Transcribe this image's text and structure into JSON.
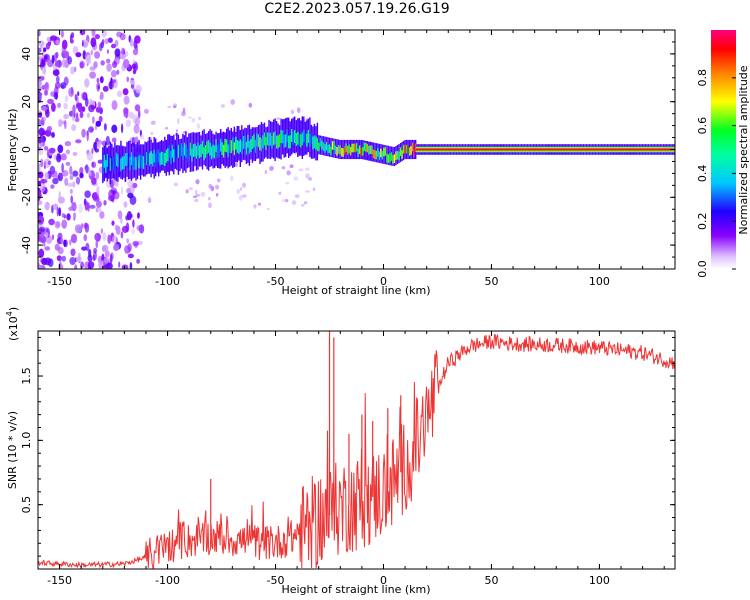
{
  "title": "C2E2.2023.057.19.26.G19",
  "chart_data": [
    {
      "type": "heatmap",
      "xlabel": "Height of straight line (km)",
      "ylabel": "Frequency (Hz)",
      "xlim": [
        -160,
        135
      ],
      "ylim": [
        -50,
        50
      ],
      "xticks": [
        -150,
        -100,
        -50,
        0,
        50,
        100
      ],
      "yticks": [
        -40,
        -20,
        0,
        20,
        40
      ],
      "colorbar": {
        "label": "Normalized spectral amplitude",
        "range": [
          0,
          1
        ],
        "ticks": [
          0.0,
          0.2,
          0.4,
          0.6,
          0.8
        ],
        "colormap": [
          "#ffffff",
          "#d8b0ff",
          "#8800ff",
          "#2000ff",
          "#00e0ff",
          "#00ff40",
          "#ffff00",
          "#ff8000",
          "#ff0000",
          "#ff0080"
        ]
      },
      "ridge": {
        "x": [
          -130,
          -110,
          -90,
          -70,
          -50,
          -40,
          -35,
          -30,
          -20,
          -10,
          0,
          5,
          10,
          20,
          50,
          100,
          135
        ],
        "y": [
          -6,
          -4,
          -1,
          1,
          4,
          5,
          5,
          2,
          0,
          0,
          -2,
          -3,
          0,
          0,
          0,
          0,
          0
        ],
        "peak_amplitude": [
          0.4,
          0.45,
          0.5,
          0.6,
          0.6,
          0.55,
          0.5,
          0.6,
          0.8,
          0.85,
          0.75,
          0.7,
          0.9,
          1.0,
          1.0,
          1.0,
          1.0
        ]
      }
    },
    {
      "type": "line",
      "xlabel": "Height of straight line (km)",
      "ylabel": "SNR (10 * v/v)",
      "scale_label": "(x10",
      "scale_exp": "4",
      "scale_suffix": ")",
      "xlim": [
        -160,
        135
      ],
      "ylim": [
        0,
        18500
      ],
      "xticks": [
        -150,
        -100,
        -50,
        0,
        50,
        100
      ],
      "yticks": [
        0.5,
        1.0,
        1.5
      ],
      "ytick_labels": [
        "0.5",
        "1.0",
        "1.5"
      ],
      "color": "#ee3333",
      "envelope": {
        "x": [
          -160,
          -140,
          -120,
          -110,
          -100,
          -90,
          -80,
          -70,
          -60,
          -50,
          -40,
          -35,
          -30,
          -25,
          -20,
          -10,
          0,
          5,
          10,
          15,
          20,
          25,
          30,
          40,
          50,
          60,
          80,
          100,
          120,
          135
        ],
        "y": [
          500,
          300,
          400,
          900,
          1800,
          2200,
          2500,
          2300,
          2100,
          2000,
          2600,
          3200,
          3800,
          4200,
          4800,
          5200,
          6000,
          6800,
          8000,
          9500,
          11500,
          14000,
          16000,
          17300,
          17700,
          17500,
          17400,
          17200,
          16800,
          16000
        ]
      },
      "spikes": [
        {
          "x": -80,
          "y": 7000
        },
        {
          "x": -25,
          "y": 18500
        },
        {
          "x": -23,
          "y": 18000
        },
        {
          "x": -16,
          "y": 10500
        },
        {
          "x": -10,
          "y": 12000
        },
        {
          "x": -5,
          "y": 11500
        },
        {
          "x": 2,
          "y": 12500
        },
        {
          "x": 8,
          "y": 13500
        }
      ]
    }
  ]
}
